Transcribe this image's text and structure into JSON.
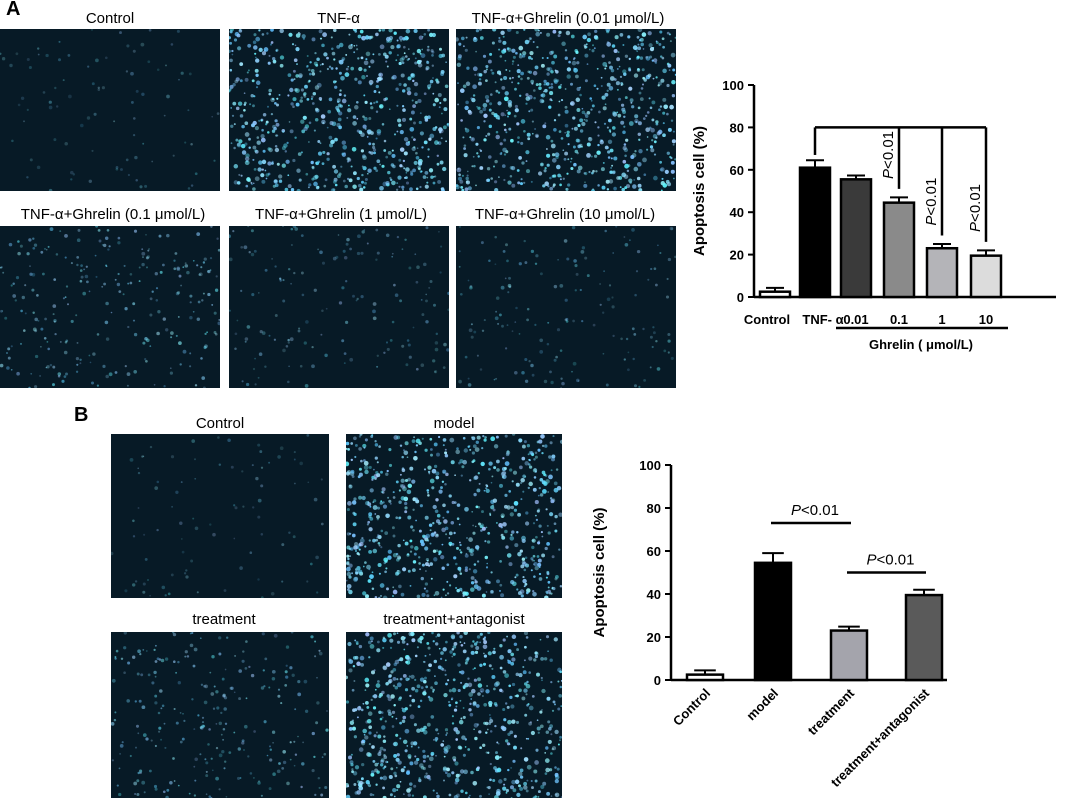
{
  "panel_a": {
    "letter": "A",
    "images": [
      {
        "label": "Control",
        "density": "sparse"
      },
      {
        "label": "TNF-α",
        "density": "dense"
      },
      {
        "label": "TNF-α+Ghrelin (0.01 μmol/L)",
        "density": "dense"
      },
      {
        "label": "TNF-α+Ghrelin (0.1 μmol/L)",
        "density": "medium"
      },
      {
        "label": "TNF-α+Ghrelin (1 μmol/L)",
        "density": "light"
      },
      {
        "label": "TNF-α+Ghrelin (10 μmol/L)",
        "density": "light"
      }
    ]
  },
  "panel_b": {
    "letter": "B",
    "images": [
      {
        "label": "Control",
        "density": "sparse"
      },
      {
        "label": "model",
        "density": "dense"
      },
      {
        "label": "treatment",
        "density": "medium"
      },
      {
        "label": "treatment+antagonist",
        "density": "dense"
      }
    ]
  },
  "chart_data": [
    {
      "type": "bar",
      "ylabel": "Apoptosis cell (%)",
      "ylim": [
        0,
        100
      ],
      "yticks": [
        "0",
        "20",
        "40",
        "60",
        "80",
        "100"
      ],
      "categories": [
        "Control",
        "TNF- α",
        "0.01",
        "0.1",
        "1",
        "10"
      ],
      "values": [
        2.5,
        61,
        55.5,
        44.5,
        23,
        19.5
      ],
      "errors": [
        1.8,
        3.5,
        1.8,
        2.5,
        2,
        2.5
      ],
      "colors": [
        "#ffffff",
        "#000000",
        "#3a3a3a",
        "#8a8a8a",
        "#b4b4b8",
        "#dcdcdc"
      ],
      "group_label": "Ghrelin ( μmol/L)",
      "significance": [
        "P<0.01",
        "P<0.01",
        "P<0.01"
      ]
    },
    {
      "type": "bar",
      "ylabel": "Apoptosis cell (%)",
      "ylim": [
        0,
        100
      ],
      "yticks": [
        "0",
        "20",
        "40",
        "60",
        "80",
        "100"
      ],
      "categories": [
        "Control",
        "model",
        "treatment",
        "treatment+antagonist"
      ],
      "values": [
        2.5,
        54.5,
        23,
        39.5
      ],
      "errors": [
        2,
        4.5,
        1.8,
        2.5
      ],
      "colors": [
        "#ffffff",
        "#000000",
        "#a4a4ac",
        "#5a5a5a"
      ],
      "significance": [
        "P<0.01",
        "P<0.01"
      ]
    }
  ]
}
